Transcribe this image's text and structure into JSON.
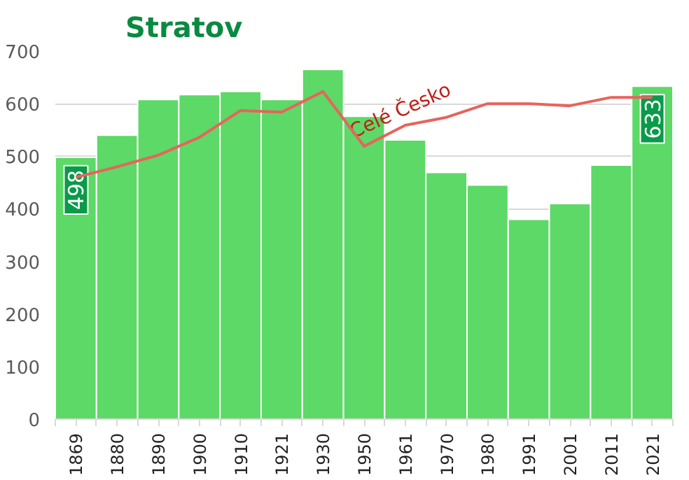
{
  "chart_data": {
    "type": "bar",
    "title": "Stratov",
    "categories": [
      "1869",
      "1880",
      "1890",
      "1900",
      "1910",
      "1921",
      "1930",
      "1950",
      "1961",
      "1970",
      "1980",
      "1991",
      "2001",
      "2011",
      "2021"
    ],
    "series": [
      {
        "color": "#5cd966",
        "values": [
          498,
          540,
          608,
          617,
          623,
          608,
          665,
          576,
          531,
          469,
          445,
          380,
          410,
          483,
          633
        ],
        "value_labels": [
          "498",
          null,
          null,
          null,
          null,
          null,
          null,
          null,
          null,
          null,
          null,
          null,
          null,
          null,
          "633"
        ]
      },
      {
        "type": "line",
        "name": "Celé Česko",
        "color": "#e8635d",
        "values": [
          460,
          480,
          502,
          536,
          587,
          584,
          623,
          519,
          559,
          574,
          600,
          600,
          596,
          612,
          612
        ]
      }
    ],
    "ylim": [
      0,
      700
    ],
    "yticks": [
      0,
      100,
      200,
      300,
      400,
      500,
      600,
      700
    ],
    "grid": "y"
  }
}
